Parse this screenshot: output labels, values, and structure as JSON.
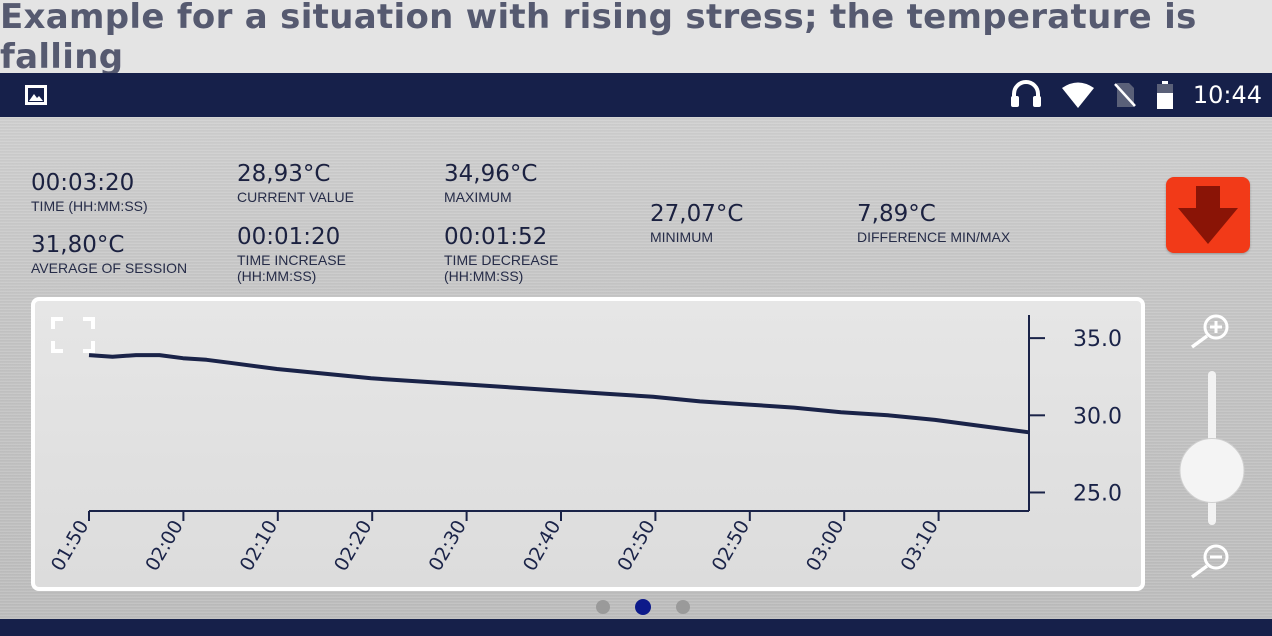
{
  "caption": "Example for a situation with rising stress; the temperature is falling",
  "status_bar": {
    "time": "10:44",
    "icons": [
      "image-icon",
      "headset-icon",
      "wifi-icon",
      "no-sim-icon",
      "battery-icon"
    ]
  },
  "stats": {
    "time": {
      "value": "00:03:20",
      "label": "TIME (HH:MM:SS)"
    },
    "average": {
      "value": "31,80°C",
      "label": "AVERAGE OF SESSION"
    },
    "current": {
      "value": "28,93°C",
      "label": "CURRENT VALUE"
    },
    "time_increase": {
      "value": "00:01:20",
      "label_line1": "TIME INCREASE",
      "label_line2": "(HH:MM:SS)"
    },
    "maximum": {
      "value": "34,96°C",
      "label": "MAXIMUM"
    },
    "time_decrease": {
      "value": "00:01:52",
      "label_line1": "TIME DECREASE",
      "label_line2": "(HH:MM:SS)"
    },
    "minimum": {
      "value": "27,07°C",
      "label": "MINIMUM"
    },
    "difference": {
      "value": "7,89°C",
      "label": "DIFFERENCE MIN/MAX"
    }
  },
  "trend_indicator": {
    "icon": "arrow-down-icon",
    "color": "#f23a18"
  },
  "chart_data": {
    "type": "line",
    "x_tick_labels": [
      "01:50",
      "02:00",
      "02:10",
      "02:20",
      "02:30",
      "02:40",
      "02:50",
      "02:50",
      "03:00",
      "03:10"
    ],
    "y_ticks": [
      35.0,
      30.0,
      25.0
    ],
    "y_tick_labels": [
      "35.0",
      "30.0",
      "25.0"
    ],
    "ylim": [
      23.8,
      36.5
    ],
    "x_span": [
      0,
      200
    ],
    "series": [
      {
        "color": "#1a2348",
        "points": [
          [
            0,
            33.9
          ],
          [
            5,
            33.8
          ],
          [
            10,
            33.9
          ],
          [
            15,
            33.9
          ],
          [
            20,
            33.7
          ],
          [
            25,
            33.6
          ],
          [
            30,
            33.4
          ],
          [
            40,
            33.0
          ],
          [
            50,
            32.7
          ],
          [
            60,
            32.4
          ],
          [
            70,
            32.2
          ],
          [
            80,
            32.0
          ],
          [
            90,
            31.8
          ],
          [
            100,
            31.6
          ],
          [
            110,
            31.4
          ],
          [
            120,
            31.2
          ],
          [
            130,
            30.9
          ],
          [
            140,
            30.7
          ],
          [
            150,
            30.5
          ],
          [
            160,
            30.2
          ],
          [
            170,
            30.0
          ],
          [
            180,
            29.7
          ],
          [
            190,
            29.3
          ],
          [
            200,
            28.9
          ]
        ]
      }
    ]
  },
  "pager": {
    "count": 3,
    "active": 1
  },
  "zoom": {
    "level": 0.25
  }
}
